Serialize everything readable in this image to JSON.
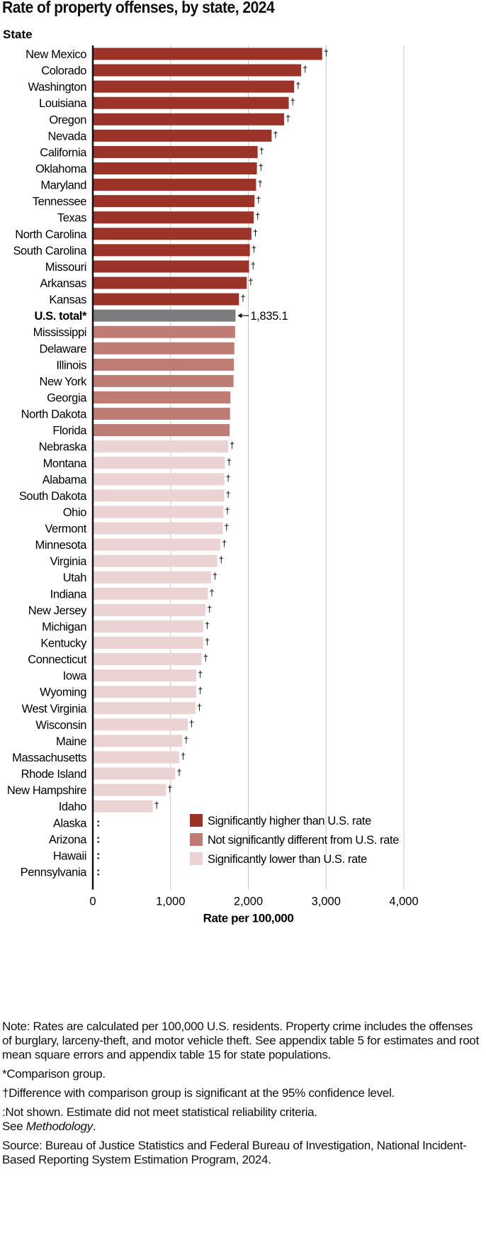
{
  "chart_data": {
    "type": "bar",
    "orientation": "horizontal",
    "title": "Rate of property offenses, by state, 2024",
    "category_axis_label": "State",
    "xlabel": "Rate per 100,000",
    "xlim": [
      0,
      4000
    ],
    "xticks": [
      0,
      1000,
      2000,
      3000,
      4000
    ],
    "xtick_labels": [
      "0",
      "1,000",
      "2,000",
      "3,000",
      "4,000"
    ],
    "grid": true,
    "colors": {
      "higher": "#9b3328",
      "not_different": "#bf7c75",
      "lower": "#ead3d2",
      "total": "#7b7b7d"
    },
    "legend": [
      {
        "key": "higher",
        "label": "Significantly higher than U.S. rate"
      },
      {
        "key": "not_different",
        "label": "Not significantly different from U.S. rate"
      },
      {
        "key": "lower",
        "label": "Significantly lower than U.S. rate"
      }
    ],
    "legend_position": "bottom-right",
    "dagger_symbol": "†",
    "not_shown_symbol": ":",
    "total_annotation": "1,835.1",
    "bars": [
      {
        "label": "New Mexico",
        "value": 2950,
        "group": "higher",
        "marker": "†"
      },
      {
        "label": "Colorado",
        "value": 2680,
        "group": "higher",
        "marker": "†"
      },
      {
        "label": "Washington",
        "value": 2590,
        "group": "higher",
        "marker": "†"
      },
      {
        "label": "Louisiana",
        "value": 2520,
        "group": "higher",
        "marker": "†"
      },
      {
        "label": "Oregon",
        "value": 2460,
        "group": "higher",
        "marker": "†"
      },
      {
        "label": "Nevada",
        "value": 2300,
        "group": "higher",
        "marker": "†"
      },
      {
        "label": "California",
        "value": 2120,
        "group": "higher",
        "marker": "†"
      },
      {
        "label": "Oklahoma",
        "value": 2110,
        "group": "higher",
        "marker": "†"
      },
      {
        "label": "Maryland",
        "value": 2100,
        "group": "higher",
        "marker": "†"
      },
      {
        "label": "Tennessee",
        "value": 2080,
        "group": "higher",
        "marker": "†"
      },
      {
        "label": "Texas",
        "value": 2070,
        "group": "higher",
        "marker": "†"
      },
      {
        "label": "North Carolina",
        "value": 2040,
        "group": "higher",
        "marker": "†"
      },
      {
        "label": "South Carolina",
        "value": 2020,
        "group": "higher",
        "marker": "†"
      },
      {
        "label": "Missouri",
        "value": 2010,
        "group": "higher",
        "marker": "†"
      },
      {
        "label": "Arkansas",
        "value": 1980,
        "group": "higher",
        "marker": "†"
      },
      {
        "label": "Kansas",
        "value": 1880,
        "group": "higher",
        "marker": "†"
      },
      {
        "label": "U.S. total*",
        "value": 1835.1,
        "group": "total",
        "marker": ""
      },
      {
        "label": "Mississippi",
        "value": 1830,
        "group": "not_different",
        "marker": ""
      },
      {
        "label": "Delaware",
        "value": 1820,
        "group": "not_different",
        "marker": ""
      },
      {
        "label": "Illinois",
        "value": 1815,
        "group": "not_different",
        "marker": ""
      },
      {
        "label": "New York",
        "value": 1810,
        "group": "not_different",
        "marker": ""
      },
      {
        "label": "Georgia",
        "value": 1770,
        "group": "not_different",
        "marker": ""
      },
      {
        "label": "North Dakota",
        "value": 1765,
        "group": "not_different",
        "marker": ""
      },
      {
        "label": "Florida",
        "value": 1760,
        "group": "not_different",
        "marker": ""
      },
      {
        "label": "Nebraska",
        "value": 1740,
        "group": "lower",
        "marker": "†"
      },
      {
        "label": "Montana",
        "value": 1700,
        "group": "lower",
        "marker": "†"
      },
      {
        "label": "Alabama",
        "value": 1690,
        "group": "lower",
        "marker": "†"
      },
      {
        "label": "South Dakota",
        "value": 1690,
        "group": "lower",
        "marker": "†"
      },
      {
        "label": "Ohio",
        "value": 1680,
        "group": "lower",
        "marker": "†"
      },
      {
        "label": "Vermont",
        "value": 1670,
        "group": "lower",
        "marker": "†"
      },
      {
        "label": "Minnesota",
        "value": 1640,
        "group": "lower",
        "marker": "†"
      },
      {
        "label": "Virginia",
        "value": 1600,
        "group": "lower",
        "marker": "†"
      },
      {
        "label": "Utah",
        "value": 1520,
        "group": "lower",
        "marker": "†"
      },
      {
        "label": "Indiana",
        "value": 1480,
        "group": "lower",
        "marker": "†"
      },
      {
        "label": "New Jersey",
        "value": 1450,
        "group": "lower",
        "marker": "†"
      },
      {
        "label": "Michigan",
        "value": 1420,
        "group": "lower",
        "marker": "†"
      },
      {
        "label": "Kentucky",
        "value": 1420,
        "group": "lower",
        "marker": "†"
      },
      {
        "label": "Connecticut",
        "value": 1400,
        "group": "lower",
        "marker": "†"
      },
      {
        "label": "Iowa",
        "value": 1330,
        "group": "lower",
        "marker": "†"
      },
      {
        "label": "Wyoming",
        "value": 1330,
        "group": "lower",
        "marker": "†"
      },
      {
        "label": "West Virginia",
        "value": 1320,
        "group": "lower",
        "marker": "†"
      },
      {
        "label": "Wisconsin",
        "value": 1220,
        "group": "lower",
        "marker": "†"
      },
      {
        "label": "Maine",
        "value": 1150,
        "group": "lower",
        "marker": "†"
      },
      {
        "label": "Massachusetts",
        "value": 1110,
        "group": "lower",
        "marker": "†"
      },
      {
        "label": "Rhode Island",
        "value": 1060,
        "group": "lower",
        "marker": "†"
      },
      {
        "label": "New Hampshire",
        "value": 940,
        "group": "lower",
        "marker": "†"
      },
      {
        "label": "Idaho",
        "value": 770,
        "group": "lower",
        "marker": "†"
      },
      {
        "label": "Alaska",
        "value": null,
        "group": "not_shown",
        "marker": ":"
      },
      {
        "label": "Arizona",
        "value": null,
        "group": "not_shown",
        "marker": ":"
      },
      {
        "label": "Hawaii",
        "value": null,
        "group": "not_shown",
        "marker": ":"
      },
      {
        "label": "Pennsylvania",
        "value": null,
        "group": "not_shown",
        "marker": ":"
      }
    ]
  },
  "notes": {
    "note": "Note: Rates are calculated per 100,000 U.S. residents. Property crime includes the offenses of burglary, larceny-theft, and motor vehicle theft. See appendix table 5 for estimates and root mean square errors and appendix table 15 for state populations.",
    "comparison": "*Comparison group.",
    "dagger": "†Difference with comparison group is significant at the 95% confidence level.",
    "not_shown": ":Not shown. Estimate did not meet statistical reliability criteria.",
    "see_prefix": "See ",
    "see_link": "Methodology",
    "see_suffix": ".",
    "source": "Source: Bureau of Justice Statistics and Federal Bureau of Investigation, National Incident-Based Reporting System Estimation Program, 2024."
  }
}
